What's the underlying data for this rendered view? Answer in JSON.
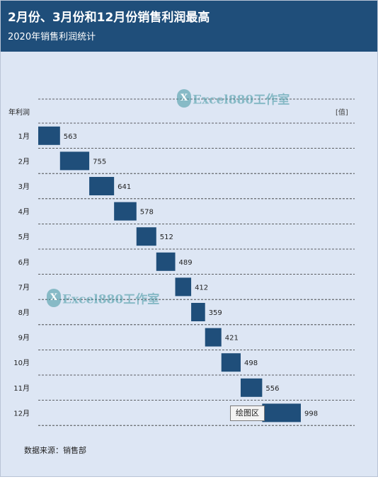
{
  "header": {
    "title": "2月份、3月份和12月份销售利润最高",
    "subtitle": "2020年销售利润统计"
  },
  "colors": {
    "header_bg": "#1f4e7a",
    "plot_bg": "#dde6f4",
    "bar": "#1f4e7a"
  },
  "chart_data": {
    "type": "bar",
    "subtype": "waterfall-style floating bars",
    "category_axis_label": "年利润",
    "value_axis_unit": "[值]",
    "categories": [
      "1月",
      "2月",
      "3月",
      "4月",
      "5月",
      "6月",
      "7月",
      "8月",
      "9月",
      "10月",
      "11月",
      "12月"
    ],
    "values": [
      563,
      755,
      641,
      578,
      512,
      489,
      412,
      359,
      421,
      498,
      556,
      998
    ],
    "grid": true,
    "data_labels": true
  },
  "watermark": {
    "logo_text": "X",
    "text": "Excel880工作室"
  },
  "tooltip": "绘图区",
  "source": "数据来源：销售部"
}
